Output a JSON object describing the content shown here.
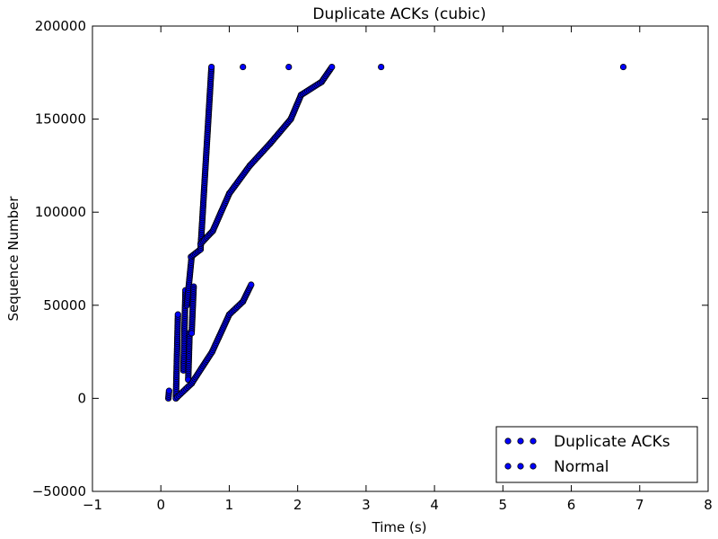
{
  "chart_data": {
    "type": "scatter",
    "title": "Duplicate ACKs (cubic)",
    "xlabel": "Time (s)",
    "ylabel": "Sequence Number",
    "xlim": [
      -1,
      8
    ],
    "ylim": [
      -50000,
      200000
    ],
    "xticks": [
      -1,
      0,
      1,
      2,
      3,
      4,
      5,
      6,
      7,
      8
    ],
    "yticks": [
      -50000,
      0,
      50000,
      100000,
      150000,
      200000
    ],
    "xtick_labels": [
      "−1",
      "0",
      "1",
      "2",
      "3",
      "4",
      "5",
      "6",
      "7",
      "8"
    ],
    "ytick_labels": [
      "−50000",
      "0",
      "50000",
      "100000",
      "150000",
      "200000"
    ],
    "grid": false,
    "legend_position": "lower-right",
    "colors": {
      "marker_fill": "#0000ff",
      "marker_edge": "#000000"
    },
    "series": [
      {
        "name": "Duplicate ACKs",
        "points": [
          [
            1.2,
            178000
          ],
          [
            1.87,
            178000
          ],
          [
            3.22,
            178000
          ],
          [
            6.76,
            178000
          ]
        ]
      },
      {
        "name": "Normal",
        "segments": [
          {
            "start": [
              0.11,
              0
            ],
            "end": [
              0.12,
              4000
            ],
            "step": 0.004
          },
          {
            "start": [
              0.22,
              0
            ],
            "end": [
              0.25,
              45000
            ],
            "step": 0.003
          },
          {
            "start": [
              0.33,
              15000
            ],
            "end": [
              0.36,
              58000
            ],
            "step": 0.003
          },
          {
            "start": [
              0.38,
              50000
            ],
            "end": [
              0.45,
              76000
            ],
            "step": 0.004
          },
          {
            "start": [
              0.44,
              76000
            ],
            "end": [
              0.58,
              80000
            ],
            "step": 0.005
          },
          {
            "start": [
              0.58,
              80000
            ],
            "end": [
              0.74,
              178000
            ],
            "step": 0.0025
          },
          {
            "start": [
              0.42,
              35000
            ],
            "end": [
              0.4,
              10000
            ],
            "step": 0.005
          },
          {
            "start": [
              0.48,
              60000
            ],
            "end": [
              0.45,
              35000
            ],
            "step": 0.005
          },
          {
            "start": [
              0.58,
              83000
            ],
            "end": [
              0.76,
              90000
            ],
            "step": 0.006
          },
          {
            "start": [
              0.76,
              90000
            ],
            "end": [
              1.0,
              110000
            ],
            "step": 0.005
          },
          {
            "start": [
              1.0,
              110000
            ],
            "end": [
              1.3,
              125000
            ],
            "step": 0.005
          },
          {
            "start": [
              1.3,
              125000
            ],
            "end": [
              1.6,
              137000
            ],
            "step": 0.006
          },
          {
            "start": [
              1.6,
              137000
            ],
            "end": [
              1.9,
              150000
            ],
            "step": 0.006
          },
          {
            "start": [
              1.9,
              150000
            ],
            "end": [
              2.05,
              163000
            ],
            "step": 0.005
          },
          {
            "start": [
              2.05,
              163000
            ],
            "end": [
              2.35,
              170000
            ],
            "step": 0.006
          },
          {
            "start": [
              2.35,
              170000
            ],
            "end": [
              2.5,
              178000
            ],
            "step": 0.006
          },
          {
            "start": [
              0.22,
              0
            ],
            "end": [
              0.45,
              8000
            ],
            "step": 0.006
          },
          {
            "start": [
              0.45,
              8000
            ],
            "end": [
              0.75,
              25000
            ],
            "step": 0.005
          },
          {
            "start": [
              0.75,
              25000
            ],
            "end": [
              1.0,
              45000
            ],
            "step": 0.005
          },
          {
            "start": [
              1.0,
              45000
            ],
            "end": [
              1.2,
              52000
            ],
            "step": 0.006
          },
          {
            "start": [
              1.2,
              52000
            ],
            "end": [
              1.32,
              61000
            ],
            "step": 0.005
          }
        ]
      }
    ]
  },
  "legend": [
    {
      "label": "Duplicate ACKs"
    },
    {
      "label": "Normal"
    }
  ]
}
